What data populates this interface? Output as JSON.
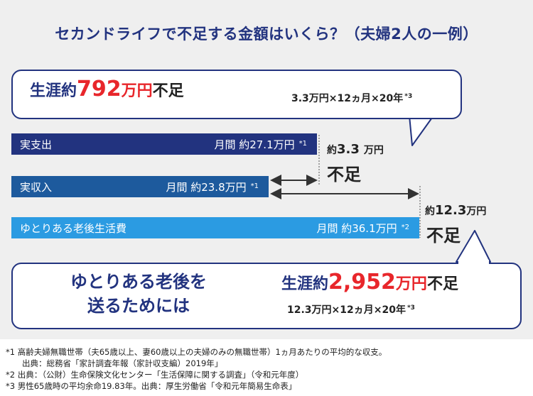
{
  "title": "セカンドライフで不足する金額はいくら？（夫婦2人の一例）",
  "top_callout": {
    "prefix": "生涯約",
    "amount": "792",
    "unit": "万円",
    "suffix": "不足",
    "formula": "3.3万円×12ヵ月×20年",
    "formula_note": "*3"
  },
  "bottom_callout": {
    "left_line1": "ゆとりある老後を",
    "left_line2": "送るためには",
    "prefix": "生涯約",
    "amount": "2,952",
    "unit": "万円",
    "suffix": "不足",
    "formula": "12.3万円×12ヵ月×20年",
    "formula_note": "*3"
  },
  "gap1": {
    "label_prefix": "約",
    "value": "3.3",
    "unit": "万円",
    "shortfall": "不足"
  },
  "gap2": {
    "label_prefix": "約",
    "value": "12.3",
    "unit": "万円",
    "shortfall": "不足"
  },
  "colors": {
    "navy": "#22337f",
    "bar1": "#22337f",
    "bar2": "#1d5a9d",
    "bar3": "#2b9be2",
    "accent_red": "#e8262b"
  },
  "chart_data": {
    "type": "bar",
    "orientation": "horizontal",
    "title": "セカンドライフで不足する金額はいくら？（夫婦2人の一例）",
    "categories": [
      "実支出",
      "実収入",
      "ゆとりある老後生活費"
    ],
    "values": [
      27.1,
      23.8,
      36.1
    ],
    "value_labels": [
      "月間 約27.1万円",
      "月間 約23.8万円",
      "月間 約36.1万円"
    ],
    "value_notes": [
      "*1",
      "*1",
      "*2"
    ],
    "unit": "万円",
    "differences": [
      {
        "from": "実収入",
        "to": "実支出",
        "value": 3.3,
        "label": "約3.3 万円不足"
      },
      {
        "from": "実収入",
        "to": "ゆとりある老後生活費",
        "value": 12.3,
        "label": "約12.3万円不足"
      }
    ]
  },
  "footnotes": [
    "*1 高齢夫婦無職世帯（夫65歳以上、妻60歳以上の夫婦のみの無職世帯）1ヵ月あたりの平均的な収支。",
    "　　出典：総務省「家計調査年報（家計収支編）2019年」",
    "*2 出典：（公財）生命保険文化センター「生活保障に関する調査」（令和元年度）",
    "*3 男性65歳時の平均余命19.83年。出典：厚生労働省「令和元年簡易生命表」"
  ]
}
